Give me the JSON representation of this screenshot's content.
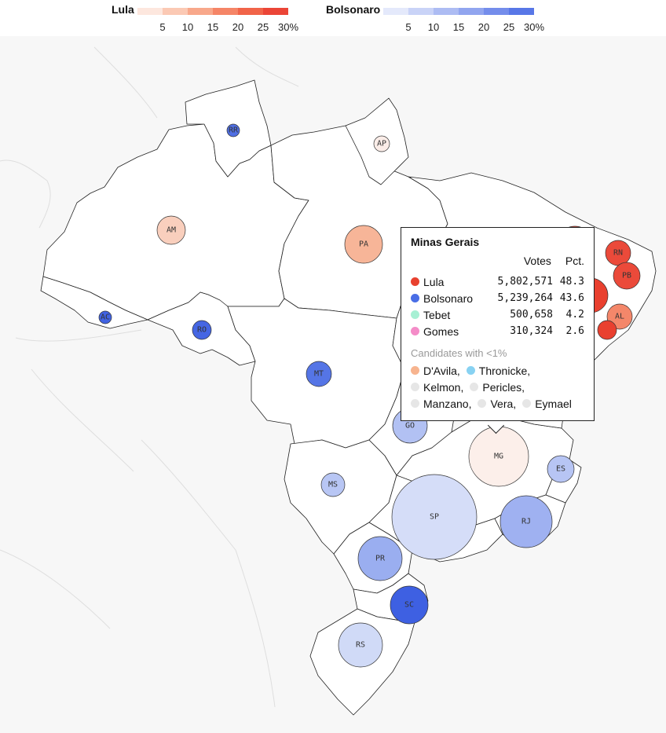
{
  "legend": {
    "lula": {
      "title": "Lula",
      "colors": [
        "#fde7de",
        "#fbc9b4",
        "#f8a88b",
        "#f58567",
        "#f16449",
        "#eb4537"
      ],
      "ticks": [
        "5",
        "10",
        "15",
        "20",
        "25",
        "30%"
      ]
    },
    "bolsonaro": {
      "title": "Bolsonaro",
      "colors": [
        "#e4e9fb",
        "#c9d3f7",
        "#adbcf3",
        "#91a5ef",
        "#748deb",
        "#5877e7"
      ],
      "ticks": [
        "5",
        "10",
        "15",
        "20",
        "25",
        "30%"
      ]
    }
  },
  "states": [
    {
      "code": "RR",
      "color": "#4f6fe4",
      "icon": "circle"
    },
    {
      "code": "AP",
      "color": "#fbede8",
      "icon": "circle"
    },
    {
      "code": "AM",
      "color": "#f9cfbd",
      "icon": "circle"
    },
    {
      "code": "PA",
      "color": "#f7b598",
      "icon": "circle"
    },
    {
      "code": "AC",
      "color": "#4163e3",
      "icon": "circle"
    },
    {
      "code": "RO",
      "color": "#4566e3",
      "icon": "circle"
    },
    {
      "code": "MT",
      "color": "#5575e6",
      "icon": "circle"
    },
    {
      "code": "GO",
      "color": "#b2c1f3",
      "icon": "circle"
    },
    {
      "code": "MS",
      "color": "#b8c6f4",
      "icon": "circle"
    },
    {
      "code": "MG",
      "color": "#fcefea",
      "icon": "circle"
    },
    {
      "code": "ES",
      "color": "#b7c5f4",
      "icon": "circle"
    },
    {
      "code": "RJ",
      "color": "#9fb1f1",
      "icon": "circle"
    },
    {
      "code": "SP",
      "color": "#d5ddf8",
      "icon": "circle"
    },
    {
      "code": "PR",
      "color": "#9aaef0",
      "icon": "circle"
    },
    {
      "code": "SC",
      "color": "#3e60e2",
      "icon": "circle"
    },
    {
      "code": "RS",
      "color": "#d0daf7",
      "icon": "circle"
    },
    {
      "code": "RN",
      "color": "#eb4a3a",
      "icon": "circle"
    },
    {
      "code": "PB",
      "color": "#eb4a3a",
      "icon": "circle"
    },
    {
      "code": "AL",
      "color": "#f4876a",
      "icon": "circle"
    },
    {
      "code": "",
      "color": "#e8402f",
      "icon": "circle"
    },
    {
      "code": "",
      "color": "#e9402f",
      "icon": "circle"
    },
    {
      "code": "",
      "color": "#e9402f",
      "icon": "circle"
    }
  ],
  "tooltip": {
    "title": "Minas Gerais",
    "col_votes": "Votes",
    "col_pct": "Pct.",
    "candidates": [
      {
        "name": "Lula",
        "votes": "5,802,571",
        "pct": "48.3",
        "color": "#e8412f"
      },
      {
        "name": "Bolsonaro",
        "votes": "5,239,264",
        "pct": "43.6",
        "color": "#4a6ee6"
      },
      {
        "name": "Tebet",
        "votes": "500,658",
        "pct": "4.2",
        "color": "#a7f0d4"
      },
      {
        "name": "Gomes",
        "votes": "310,324",
        "pct": "2.6",
        "color": "#f48cc8"
      }
    ],
    "minor_title": "Candidates with <1%",
    "minor_lines": [
      [
        {
          "name": "D'Avila,",
          "color": "#f7b48f"
        },
        {
          "name": "Thronicke,",
          "color": "#88d2f2"
        }
      ],
      [
        {
          "name": "Kelmon,",
          "color": "#e6e6e6"
        },
        {
          "name": "Pericles,",
          "color": "#e6e6e6"
        }
      ],
      [
        {
          "name": "Manzano,",
          "color": "#e6e6e6"
        },
        {
          "name": "Vera,",
          "color": "#e6e6e6"
        },
        {
          "name": "Eymael",
          "color": "#e6e6e6"
        }
      ]
    ]
  }
}
